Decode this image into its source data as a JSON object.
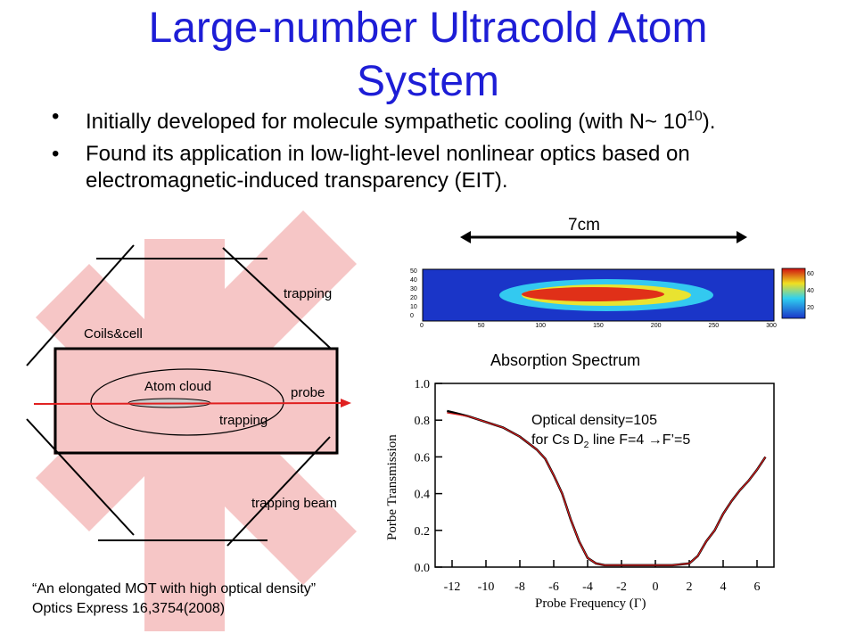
{
  "slide": {
    "title_line1": "Large-number Ultracold Atom",
    "title_line2": "System",
    "bullets": [
      {
        "pre": "Initially developed for molecule sympathetic cooling (with N~ 10",
        "sup": "10",
        "post": ")."
      },
      {
        "pre": "Found its application in low-light-level nonlinear optics based on electromagnetic-induced transparency (EIT).",
        "sup": "",
        "post": ""
      }
    ]
  },
  "setup_diagram": {
    "labels": {
      "coils": "Coils&cell",
      "atom_cloud": "Atom cloud",
      "probe": "probe",
      "trapping_top": "trapping",
      "trapping_mid": "trapping",
      "trapping_beam": "trapping beam"
    },
    "colors": {
      "beam": "#f6c6c6",
      "probe": "#e02020",
      "cloud": "#cccccc"
    }
  },
  "image_panel": {
    "scale_label": "7cm",
    "y_ticks": [
      "50",
      "40",
      "30",
      "20",
      "10",
      "0"
    ],
    "x_ticks": [
      "0",
      "50",
      "100",
      "150",
      "200",
      "250",
      "300"
    ],
    "colorbar_ticks": [
      "60",
      "40",
      "20"
    ]
  },
  "spectrum": {
    "title": "Absorption Spectrum",
    "annotation_line1": "Optical density=105",
    "annotation_line2_pre": "for Cs D",
    "annotation_line2_sub": "2",
    "annotation_line2_post": " line F=4 →F’=5"
  },
  "chart_data": {
    "type": "line",
    "title": "",
    "xlabel": "Probe Frequency (Γ)",
    "ylabel": "Porbe Transmission",
    "xlim": [
      -13,
      7
    ],
    "ylim": [
      0,
      1.0
    ],
    "x_ticks": [
      -12,
      -10,
      -8,
      -6,
      -4,
      -2,
      0,
      2,
      4,
      6
    ],
    "y_ticks": [
      0.0,
      0.2,
      0.4,
      0.6,
      0.8,
      1.0
    ],
    "series": [
      {
        "color": "#000000",
        "x": [
          -12.3,
          -11,
          -10,
          -9,
          -8,
          -7,
          -6.5,
          -6,
          -5.5,
          -5,
          -4.5,
          -4,
          -3.5,
          -3,
          -2,
          -1,
          0,
          1,
          2,
          2.5,
          3,
          3.5,
          4,
          4.5,
          5,
          5.5,
          6,
          6.5
        ],
        "y": [
          0.85,
          0.82,
          0.79,
          0.76,
          0.71,
          0.64,
          0.59,
          0.5,
          0.4,
          0.26,
          0.14,
          0.05,
          0.02,
          0.01,
          0.01,
          0.01,
          0.01,
          0.01,
          0.02,
          0.06,
          0.14,
          0.2,
          0.29,
          0.36,
          0.42,
          0.47,
          0.53,
          0.6
        ]
      },
      {
        "color": "#e02020",
        "x": [
          -12.3,
          -11,
          -10,
          -9,
          -8,
          -7,
          -6.5,
          -6,
          -5.5,
          -5,
          -4.5,
          -4,
          -3.5,
          -3,
          -2,
          -1,
          0,
          1,
          2,
          2.5,
          3,
          3.5,
          4,
          4.5,
          5,
          5.5,
          6,
          6.5
        ],
        "y": [
          0.84,
          0.82,
          0.79,
          0.76,
          0.71,
          0.64,
          0.59,
          0.5,
          0.4,
          0.26,
          0.14,
          0.05,
          0.02,
          0.01,
          0.01,
          0.01,
          0.01,
          0.01,
          0.02,
          0.06,
          0.14,
          0.2,
          0.29,
          0.36,
          0.42,
          0.47,
          0.53,
          0.6
        ]
      }
    ]
  },
  "citation": {
    "line1": "“An elongated MOT with high optical density”",
    "line2": "Optics Express 16,3754(2008)"
  }
}
